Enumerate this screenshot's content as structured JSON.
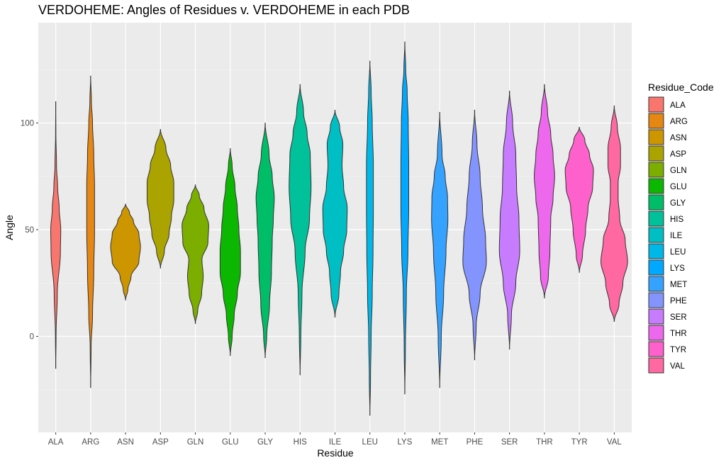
{
  "chart_data": {
    "type": "violin",
    "title": "VERDOHEME: Angles of Residues v. VERDOHEME in each PDB",
    "xlabel": "Residue",
    "ylabel": "Angle",
    "ylim": [
      -45,
      147
    ],
    "y_ticks": [
      0,
      50,
      100
    ],
    "categories": [
      "ALA",
      "ARG",
      "ASN",
      "ASP",
      "GLN",
      "GLU",
      "GLY",
      "HIS",
      "ILE",
      "LEU",
      "LYS",
      "MET",
      "PHE",
      "SER",
      "THR",
      "TYR",
      "VAL"
    ],
    "legend": {
      "title": "Residue_Code",
      "position": "right"
    },
    "grid": true,
    "colors": [
      "#F8766D",
      "#E68613",
      "#CD9600",
      "#ABA300",
      "#7CAE00",
      "#0CB702",
      "#00BE67",
      "#00C19A",
      "#00BFC4",
      "#00B8E7",
      "#00A9FF",
      "#35A2FF",
      "#8494FF",
      "#C77CFF",
      "#ED68ED",
      "#FF61CC",
      "#FF68A1"
    ],
    "series": [
      {
        "name": "ALA",
        "min": -15,
        "max": 110,
        "density": [
          [
            -15,
            0
          ],
          [
            0,
            0.02
          ],
          [
            20,
            0.1
          ],
          [
            40,
            0.3
          ],
          [
            50,
            0.32
          ],
          [
            60,
            0.22
          ],
          [
            70,
            0.12
          ],
          [
            80,
            0.05
          ],
          [
            95,
            0.01
          ],
          [
            110,
            0
          ]
        ]
      },
      {
        "name": "ARG",
        "min": -24,
        "max": 122,
        "density": [
          [
            -24,
            0
          ],
          [
            -5,
            0.03
          ],
          [
            10,
            0.12
          ],
          [
            30,
            0.2
          ],
          [
            50,
            0.25
          ],
          [
            70,
            0.25
          ],
          [
            85,
            0.2
          ],
          [
            100,
            0.12
          ],
          [
            110,
            0.05
          ],
          [
            122,
            0
          ]
        ]
      },
      {
        "name": "ASN",
        "min": 17,
        "max": 62,
        "density": [
          [
            17,
            0
          ],
          [
            22,
            0.15
          ],
          [
            28,
            0.35
          ],
          [
            35,
            0.85
          ],
          [
            42,
            0.95
          ],
          [
            48,
            0.85
          ],
          [
            54,
            0.5
          ],
          [
            58,
            0.25
          ],
          [
            62,
            0
          ]
        ]
      },
      {
        "name": "ASP",
        "min": 32,
        "max": 97,
        "density": [
          [
            32,
            0
          ],
          [
            40,
            0.25
          ],
          [
            48,
            0.55
          ],
          [
            56,
            0.7
          ],
          [
            64,
            0.85
          ],
          [
            72,
            0.85
          ],
          [
            80,
            0.65
          ],
          [
            88,
            0.35
          ],
          [
            97,
            0
          ]
        ]
      },
      {
        "name": "GLN",
        "min": 6,
        "max": 71,
        "density": [
          [
            6,
            0
          ],
          [
            12,
            0.15
          ],
          [
            20,
            0.4
          ],
          [
            28,
            0.5
          ],
          [
            36,
            0.42
          ],
          [
            44,
            0.8
          ],
          [
            52,
            0.85
          ],
          [
            60,
            0.55
          ],
          [
            66,
            0.25
          ],
          [
            71,
            0
          ]
        ]
      },
      {
        "name": "GLU",
        "min": -9,
        "max": 88,
        "density": [
          [
            -9,
            0
          ],
          [
            0,
            0.12
          ],
          [
            10,
            0.25
          ],
          [
            20,
            0.45
          ],
          [
            30,
            0.65
          ],
          [
            40,
            0.65
          ],
          [
            50,
            0.55
          ],
          [
            60,
            0.45
          ],
          [
            70,
            0.3
          ],
          [
            80,
            0.12
          ],
          [
            88,
            0
          ]
        ]
      },
      {
        "name": "GLY",
        "min": -10,
        "max": 100,
        "density": [
          [
            -10,
            0
          ],
          [
            0,
            0.1
          ],
          [
            15,
            0.28
          ],
          [
            30,
            0.4
          ],
          [
            45,
            0.45
          ],
          [
            55,
            0.52
          ],
          [
            65,
            0.58
          ],
          [
            75,
            0.45
          ],
          [
            85,
            0.25
          ],
          [
            100,
            0
          ]
        ]
      },
      {
        "name": "HIS",
        "min": -18,
        "max": 118,
        "density": [
          [
            -18,
            0
          ],
          [
            0,
            0.05
          ],
          [
            20,
            0.12
          ],
          [
            40,
            0.32
          ],
          [
            55,
            0.6
          ],
          [
            70,
            0.7
          ],
          [
            85,
            0.65
          ],
          [
            95,
            0.45
          ],
          [
            105,
            0.22
          ],
          [
            118,
            0
          ]
        ]
      },
      {
        "name": "ILE",
        "min": 9,
        "max": 106,
        "density": [
          [
            9,
            0
          ],
          [
            20,
            0.25
          ],
          [
            30,
            0.35
          ],
          [
            40,
            0.55
          ],
          [
            50,
            0.75
          ],
          [
            60,
            0.78
          ],
          [
            70,
            0.55
          ],
          [
            80,
            0.45
          ],
          [
            90,
            0.5
          ],
          [
            98,
            0.3
          ],
          [
            106,
            0
          ]
        ]
      },
      {
        "name": "LEU",
        "min": -37,
        "max": 129,
        "density": [
          [
            -37,
            0
          ],
          [
            -20,
            0.04
          ],
          [
            0,
            0.08
          ],
          [
            20,
            0.15
          ],
          [
            40,
            0.2
          ],
          [
            60,
            0.22
          ],
          [
            80,
            0.22
          ],
          [
            100,
            0.15
          ],
          [
            115,
            0.08
          ],
          [
            129,
            0
          ]
        ]
      },
      {
        "name": "LYS",
        "min": -27,
        "max": 138,
        "density": [
          [
            -27,
            0
          ],
          [
            -5,
            0.04
          ],
          [
            20,
            0.1
          ],
          [
            40,
            0.2
          ],
          [
            60,
            0.25
          ],
          [
            80,
            0.25
          ],
          [
            100,
            0.22
          ],
          [
            115,
            0.15
          ],
          [
            125,
            0.06
          ],
          [
            138,
            0
          ]
        ]
      },
      {
        "name": "MET",
        "min": -24,
        "max": 105,
        "density": [
          [
            -24,
            0
          ],
          [
            0,
            0.1
          ],
          [
            20,
            0.25
          ],
          [
            40,
            0.4
          ],
          [
            55,
            0.52
          ],
          [
            65,
            0.5
          ],
          [
            75,
            0.35
          ],
          [
            85,
            0.15
          ],
          [
            105,
            0
          ]
        ]
      },
      {
        "name": "PHE",
        "min": -11,
        "max": 106,
        "density": [
          [
            -11,
            0
          ],
          [
            5,
            0.1
          ],
          [
            20,
            0.35
          ],
          [
            35,
            0.75
          ],
          [
            45,
            0.7
          ],
          [
            60,
            0.5
          ],
          [
            75,
            0.35
          ],
          [
            90,
            0.15
          ],
          [
            106,
            0
          ]
        ]
      },
      {
        "name": "SER",
        "min": -6,
        "max": 115,
        "density": [
          [
            -6,
            0
          ],
          [
            10,
            0.12
          ],
          [
            25,
            0.4
          ],
          [
            40,
            0.65
          ],
          [
            55,
            0.6
          ],
          [
            70,
            0.45
          ],
          [
            85,
            0.4
          ],
          [
            100,
            0.2
          ],
          [
            115,
            0
          ]
        ]
      },
      {
        "name": "THR",
        "min": 18,
        "max": 118,
        "density": [
          [
            18,
            0
          ],
          [
            28,
            0.25
          ],
          [
            40,
            0.35
          ],
          [
            55,
            0.4
          ],
          [
            65,
            0.55
          ],
          [
            75,
            0.65
          ],
          [
            85,
            0.55
          ],
          [
            95,
            0.4
          ],
          [
            105,
            0.2
          ],
          [
            118,
            0
          ]
        ]
      },
      {
        "name": "TYR",
        "min": 30,
        "max": 98,
        "density": [
          [
            30,
            0
          ],
          [
            38,
            0.2
          ],
          [
            50,
            0.4
          ],
          [
            60,
            0.55
          ],
          [
            70,
            0.85
          ],
          [
            78,
            0.9
          ],
          [
            85,
            0.65
          ],
          [
            92,
            0.35
          ],
          [
            98,
            0
          ]
        ]
      },
      {
        "name": "VAL",
        "min": 7,
        "max": 108,
        "density": [
          [
            7,
            0
          ],
          [
            15,
            0.3
          ],
          [
            25,
            0.55
          ],
          [
            35,
            0.85
          ],
          [
            45,
            0.7
          ],
          [
            55,
            0.35
          ],
          [
            65,
            0.25
          ],
          [
            72,
            0.25
          ],
          [
            80,
            0.4
          ],
          [
            88,
            0.4
          ],
          [
            98,
            0.2
          ],
          [
            108,
            0
          ]
        ]
      }
    ]
  }
}
